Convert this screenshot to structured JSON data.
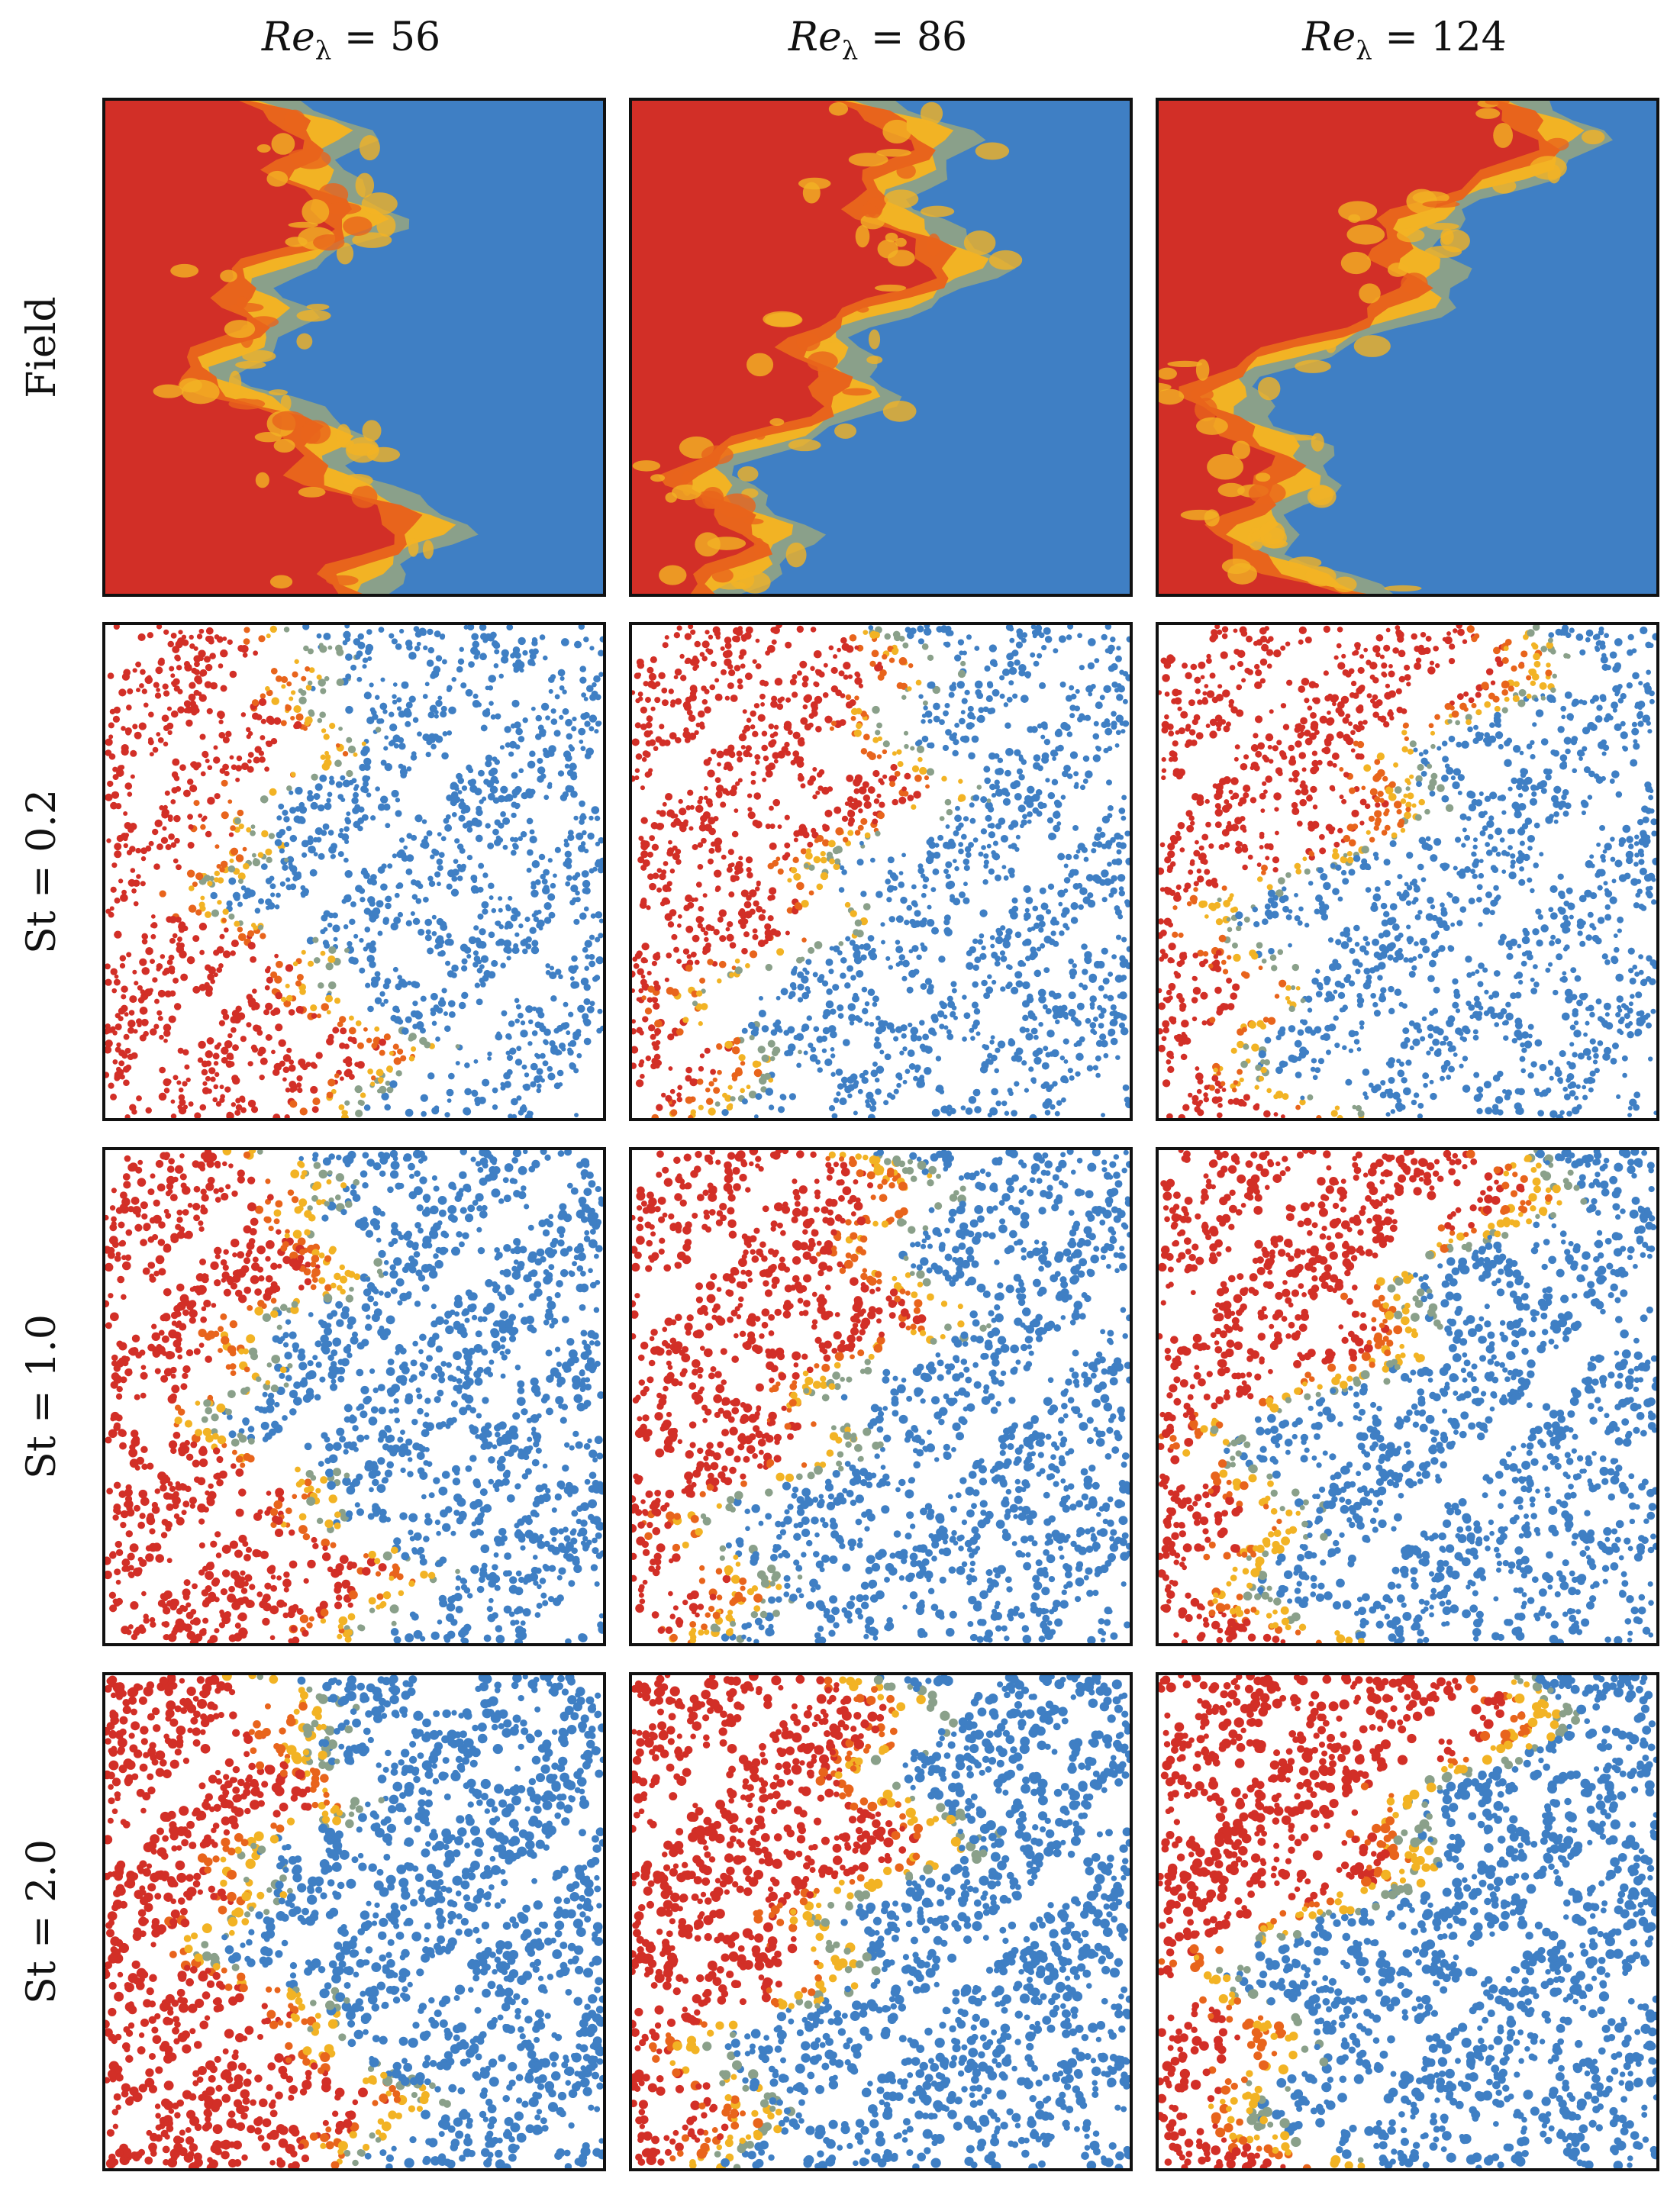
{
  "columns": [
    {
      "label_main": "Re",
      "label_sub": "λ",
      "label_rest": " = 56"
    },
    {
      "label_main": "Re",
      "label_sub": "λ",
      "label_rest": " = 86"
    },
    {
      "label_main": "Re",
      "label_sub": "λ",
      "label_rest": " = 124"
    }
  ],
  "rows": [
    {
      "label": "Field"
    },
    {
      "label": "St = 0.2"
    },
    {
      "label": "St = 1.0"
    },
    {
      "label": "St = 2.0"
    }
  ],
  "colors": {
    "red": "#d22f27",
    "orange": "#e8641c",
    "yellow": "#f2b324",
    "grey_green": "#8aa08a",
    "blue": "#3f7fc4",
    "frame": "#111111",
    "background": "#ffffff"
  },
  "panels": {
    "field_row": "continuous scalar field (red left region, blue right region, mixed interface)",
    "particle_rows": "scattered particles colored by scalar value"
  }
}
